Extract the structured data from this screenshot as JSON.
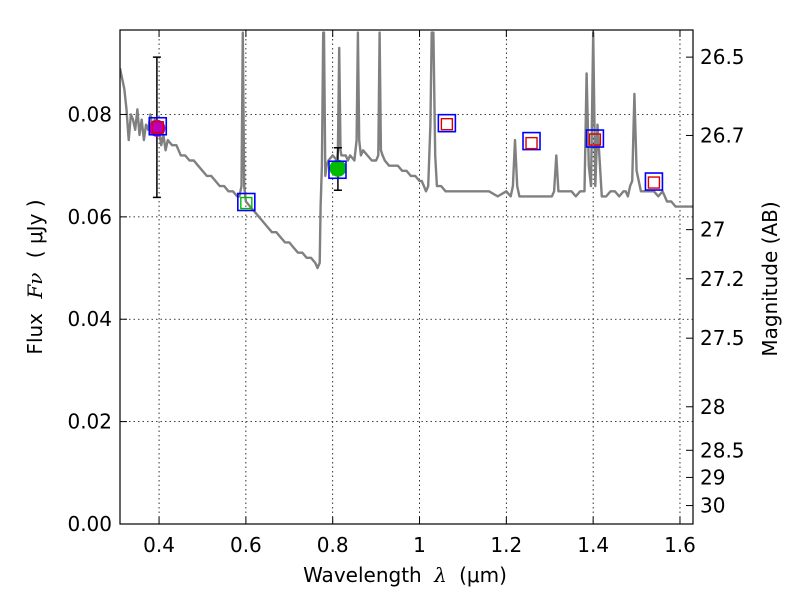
{
  "chart_data": {
    "type": "line",
    "title": "",
    "xlabel_main": "Wavelength",
    "xlabel_symbol": "λ",
    "xlabel_unit": "(μm)",
    "ylabel_main": "Flux",
    "ylabel_symbol": "Fν",
    "ylabel_unit": "( μJy )",
    "ylabel_right": "Magnitude (AB)",
    "xlim": [
      0.31,
      1.63
    ],
    "ylim": [
      0.0,
      0.0965
    ],
    "grid": true,
    "x_ticks": [
      0.4,
      0.6,
      0.8,
      1.0,
      1.2,
      1.4,
      1.6
    ],
    "x_tick_labels": [
      "0.4",
      "0.6",
      "0.8",
      "1",
      "1.2",
      "1.4",
      "1.6"
    ],
    "y_ticks": [
      0.0,
      0.02,
      0.04,
      0.06,
      0.08
    ],
    "y_tick_labels": [
      "0.00",
      "0.02",
      "0.04",
      "0.06",
      "0.08"
    ],
    "right_ticks": [
      {
        "label": "26.5",
        "flux": 0.0912
      },
      {
        "label": "26.7",
        "flux": 0.0759
      },
      {
        "label": "27",
        "flux": 0.0575
      },
      {
        "label": "27.2",
        "flux": 0.0479
      },
      {
        "label": "27.5",
        "flux": 0.0363
      },
      {
        "label": "28",
        "flux": 0.0229
      },
      {
        "label": "28.5",
        "flux": 0.0144
      },
      {
        "label": "29",
        "flux": 0.0091
      },
      {
        "label": "30",
        "flux": 0.0036
      }
    ],
    "series": [
      {
        "name": "model SED",
        "color": "#808080",
        "x": [
          0.31,
          0.32,
          0.325,
          0.33,
          0.335,
          0.34,
          0.345,
          0.35,
          0.355,
          0.36,
          0.365,
          0.37,
          0.375,
          0.38,
          0.385,
          0.39,
          0.395,
          0.4,
          0.405,
          0.41,
          0.415,
          0.42,
          0.43,
          0.44,
          0.45,
          0.46,
          0.47,
          0.48,
          0.49,
          0.5,
          0.51,
          0.52,
          0.53,
          0.54,
          0.55,
          0.56,
          0.57,
          0.58,
          0.585,
          0.59,
          0.593,
          0.596,
          0.6,
          0.61,
          0.62,
          0.63,
          0.64,
          0.65,
          0.66,
          0.67,
          0.68,
          0.69,
          0.7,
          0.71,
          0.72,
          0.73,
          0.74,
          0.75,
          0.76,
          0.765,
          0.77,
          0.772,
          0.775,
          0.778,
          0.78,
          0.783,
          0.786,
          0.79,
          0.8,
          0.81,
          0.812,
          0.815,
          0.818,
          0.82,
          0.83,
          0.835,
          0.84,
          0.85,
          0.855,
          0.858,
          0.861,
          0.865,
          0.87,
          0.88,
          0.89,
          0.9,
          0.905,
          0.908,
          0.911,
          0.915,
          0.92,
          0.93,
          0.94,
          0.95,
          0.96,
          0.97,
          0.98,
          0.99,
          1.0,
          1.005,
          1.01,
          1.015,
          1.02,
          1.025,
          1.028,
          1.032,
          1.036,
          1.04,
          1.05,
          1.06,
          1.07,
          1.08,
          1.09,
          1.1,
          1.12,
          1.14,
          1.16,
          1.18,
          1.2,
          1.21,
          1.215,
          1.22,
          1.225,
          1.23,
          1.24,
          1.25,
          1.26,
          1.27,
          1.28,
          1.29,
          1.3,
          1.305,
          1.31,
          1.315,
          1.32,
          1.33,
          1.34,
          1.35,
          1.36,
          1.37,
          1.375,
          1.38,
          1.385,
          1.39,
          1.395,
          1.4,
          1.405,
          1.41,
          1.42,
          1.43,
          1.44,
          1.45,
          1.46,
          1.47,
          1.475,
          1.48,
          1.485,
          1.49,
          1.495,
          1.5,
          1.51,
          1.52,
          1.53,
          1.54,
          1.55,
          1.56,
          1.57,
          1.58,
          1.59,
          1.6,
          1.61,
          1.62,
          1.63
        ],
        "y": [
          0.089,
          0.085,
          0.081,
          0.075,
          0.08,
          0.079,
          0.077,
          0.081,
          0.076,
          0.079,
          0.075,
          0.078,
          0.077,
          0.08,
          0.077,
          0.079,
          0.076,
          0.077,
          0.074,
          0.076,
          0.073,
          0.075,
          0.074,
          0.074,
          0.072,
          0.072,
          0.071,
          0.071,
          0.07,
          0.069,
          0.068,
          0.068,
          0.067,
          0.066,
          0.066,
          0.065,
          0.065,
          0.064,
          0.064,
          0.066,
          0.096,
          0.066,
          0.063,
          0.062,
          0.061,
          0.06,
          0.059,
          0.058,
          0.057,
          0.057,
          0.056,
          0.055,
          0.055,
          0.054,
          0.053,
          0.053,
          0.052,
          0.052,
          0.051,
          0.05,
          0.051,
          0.062,
          0.07,
          0.096,
          0.096,
          0.068,
          0.07,
          0.071,
          0.072,
          0.071,
          0.073,
          0.093,
          0.073,
          0.072,
          0.072,
          0.071,
          0.072,
          0.071,
          0.075,
          0.096,
          0.075,
          0.072,
          0.073,
          0.072,
          0.071,
          0.071,
          0.072,
          0.096,
          0.073,
          0.072,
          0.071,
          0.07,
          0.07,
          0.07,
          0.069,
          0.069,
          0.068,
          0.068,
          0.067,
          0.067,
          0.066,
          0.065,
          0.066,
          0.078,
          0.096,
          0.096,
          0.072,
          0.066,
          0.066,
          0.065,
          0.065,
          0.065,
          0.065,
          0.065,
          0.065,
          0.065,
          0.065,
          0.064,
          0.065,
          0.064,
          0.066,
          0.075,
          0.066,
          0.064,
          0.064,
          0.064,
          0.064,
          0.064,
          0.064,
          0.064,
          0.064,
          0.064,
          0.065,
          0.072,
          0.065,
          0.065,
          0.065,
          0.065,
          0.064,
          0.065,
          0.065,
          0.065,
          0.088,
          0.07,
          0.066,
          0.096,
          0.066,
          0.078,
          0.064,
          0.064,
          0.065,
          0.065,
          0.064,
          0.065,
          0.065,
          0.064,
          0.066,
          0.067,
          0.084,
          0.069,
          0.065,
          0.065,
          0.065,
          0.065,
          0.064,
          0.065,
          0.063,
          0.063,
          0.062,
          0.062,
          0.062,
          0.062,
          0.062
        ]
      }
    ],
    "error_points": [
      {
        "name": "photometry-u",
        "x": 0.395,
        "y": 0.0773,
        "yerr_low": 0.0638,
        "yerr_high": 0.0912,
        "color": "#bb00bb"
      },
      {
        "name": "photometry-i",
        "x": 0.812,
        "y": 0.0695,
        "yerr_low": 0.0652,
        "yerr_high": 0.0735,
        "color": "#00bb00"
      }
    ],
    "blue_boxes": [
      {
        "x": 0.397,
        "y": 0.0777
      },
      {
        "x": 0.601,
        "y": 0.0629
      },
      {
        "x": 0.811,
        "y": 0.0692
      },
      {
        "x": 1.063,
        "y": 0.0783
      },
      {
        "x": 1.258,
        "y": 0.0748
      },
      {
        "x": 1.404,
        "y": 0.0753
      },
      {
        "x": 1.54,
        "y": 0.0669
      }
    ],
    "red_boxes": [
      {
        "x": 0.397,
        "y": 0.0775
      },
      {
        "x": 0.601,
        "y": 0.0627,
        "color": "#00bb00"
      },
      {
        "x": 1.063,
        "y": 0.0781
      },
      {
        "x": 1.258,
        "y": 0.0744
      },
      {
        "x": 1.404,
        "y": 0.0751
      },
      {
        "x": 1.54,
        "y": 0.0667
      }
    ]
  }
}
